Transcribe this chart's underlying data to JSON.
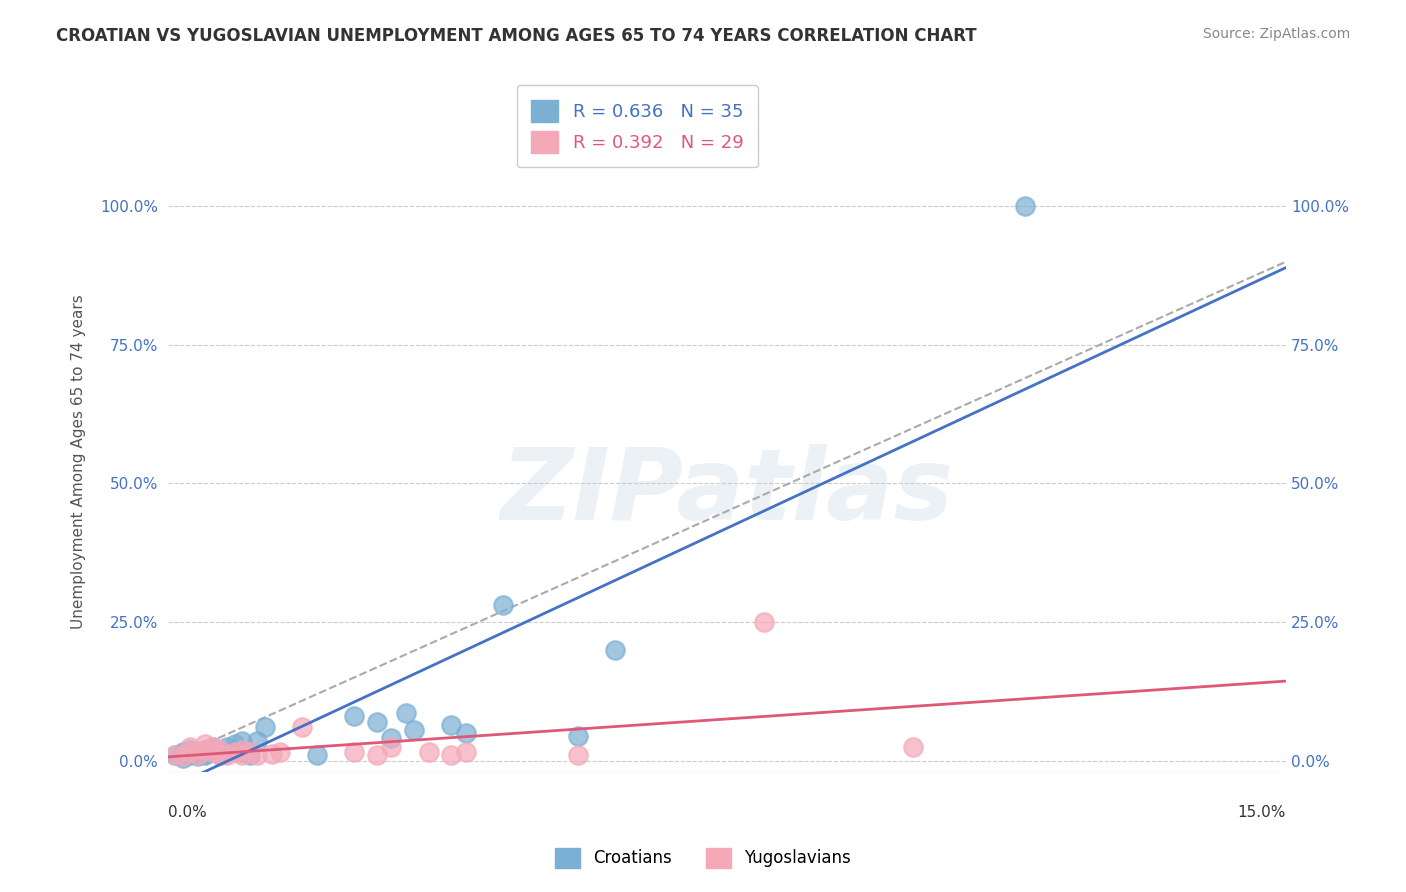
{
  "title": "CROATIAN VS YUGOSLAVIAN UNEMPLOYMENT AMONG AGES 65 TO 74 YEARS CORRELATION CHART",
  "source": "Source: ZipAtlas.com",
  "xlabel_bottom_left": "0.0%",
  "xlabel_bottom_right": "15.0%",
  "ylabel": "Unemployment Among Ages 65 to 74 years",
  "ytick_labels": [
    "0.0%",
    "25.0%",
    "50.0%",
    "75.0%",
    "100.0%"
  ],
  "ytick_values": [
    0.0,
    0.25,
    0.5,
    0.75,
    1.0
  ],
  "xlim": [
    0.0,
    0.15
  ],
  "ylim": [
    -0.02,
    1.1
  ],
  "croatian_R": 0.636,
  "croatian_N": 35,
  "yugoslavian_R": 0.392,
  "yugoslavian_N": 29,
  "croatian_color": "#7bafd4",
  "croatian_line_color": "#4472c4",
  "yugoslavian_color": "#f4a8b8",
  "yugoslavian_line_color": "#e05878",
  "watermark": "ZIPatlas",
  "background_color": "#ffffff",
  "croatian_x": [
    0.001,
    0.002,
    0.002,
    0.003,
    0.003,
    0.004,
    0.004,
    0.005,
    0.005,
    0.005,
    0.006,
    0.006,
    0.007,
    0.007,
    0.008,
    0.008,
    0.009,
    0.009,
    0.01,
    0.01,
    0.011,
    0.012,
    0.013,
    0.02,
    0.025,
    0.028,
    0.03,
    0.032,
    0.033,
    0.038,
    0.04,
    0.045,
    0.055,
    0.06,
    0.115
  ],
  "croatian_y": [
    0.01,
    0.005,
    0.015,
    0.01,
    0.02,
    0.008,
    0.015,
    0.01,
    0.02,
    0.012,
    0.015,
    0.025,
    0.01,
    0.02,
    0.015,
    0.025,
    0.03,
    0.02,
    0.035,
    0.015,
    0.01,
    0.035,
    0.06,
    0.01,
    0.08,
    0.07,
    0.04,
    0.085,
    0.055,
    0.065,
    0.05,
    0.28,
    0.045,
    0.2,
    1.0
  ],
  "yugoslavian_x": [
    0.001,
    0.002,
    0.003,
    0.003,
    0.004,
    0.005,
    0.005,
    0.006,
    0.006,
    0.007,
    0.007,
    0.008,
    0.009,
    0.01,
    0.01,
    0.011,
    0.012,
    0.014,
    0.015,
    0.018,
    0.025,
    0.028,
    0.03,
    0.035,
    0.038,
    0.04,
    0.055,
    0.08,
    0.1
  ],
  "yugoslavian_y": [
    0.01,
    0.008,
    0.015,
    0.025,
    0.01,
    0.02,
    0.03,
    0.015,
    0.025,
    0.01,
    0.02,
    0.01,
    0.015,
    0.01,
    0.02,
    0.015,
    0.01,
    0.012,
    0.015,
    0.06,
    0.015,
    0.01,
    0.025,
    0.015,
    0.01,
    0.015,
    0.01,
    0.25,
    0.025
  ]
}
